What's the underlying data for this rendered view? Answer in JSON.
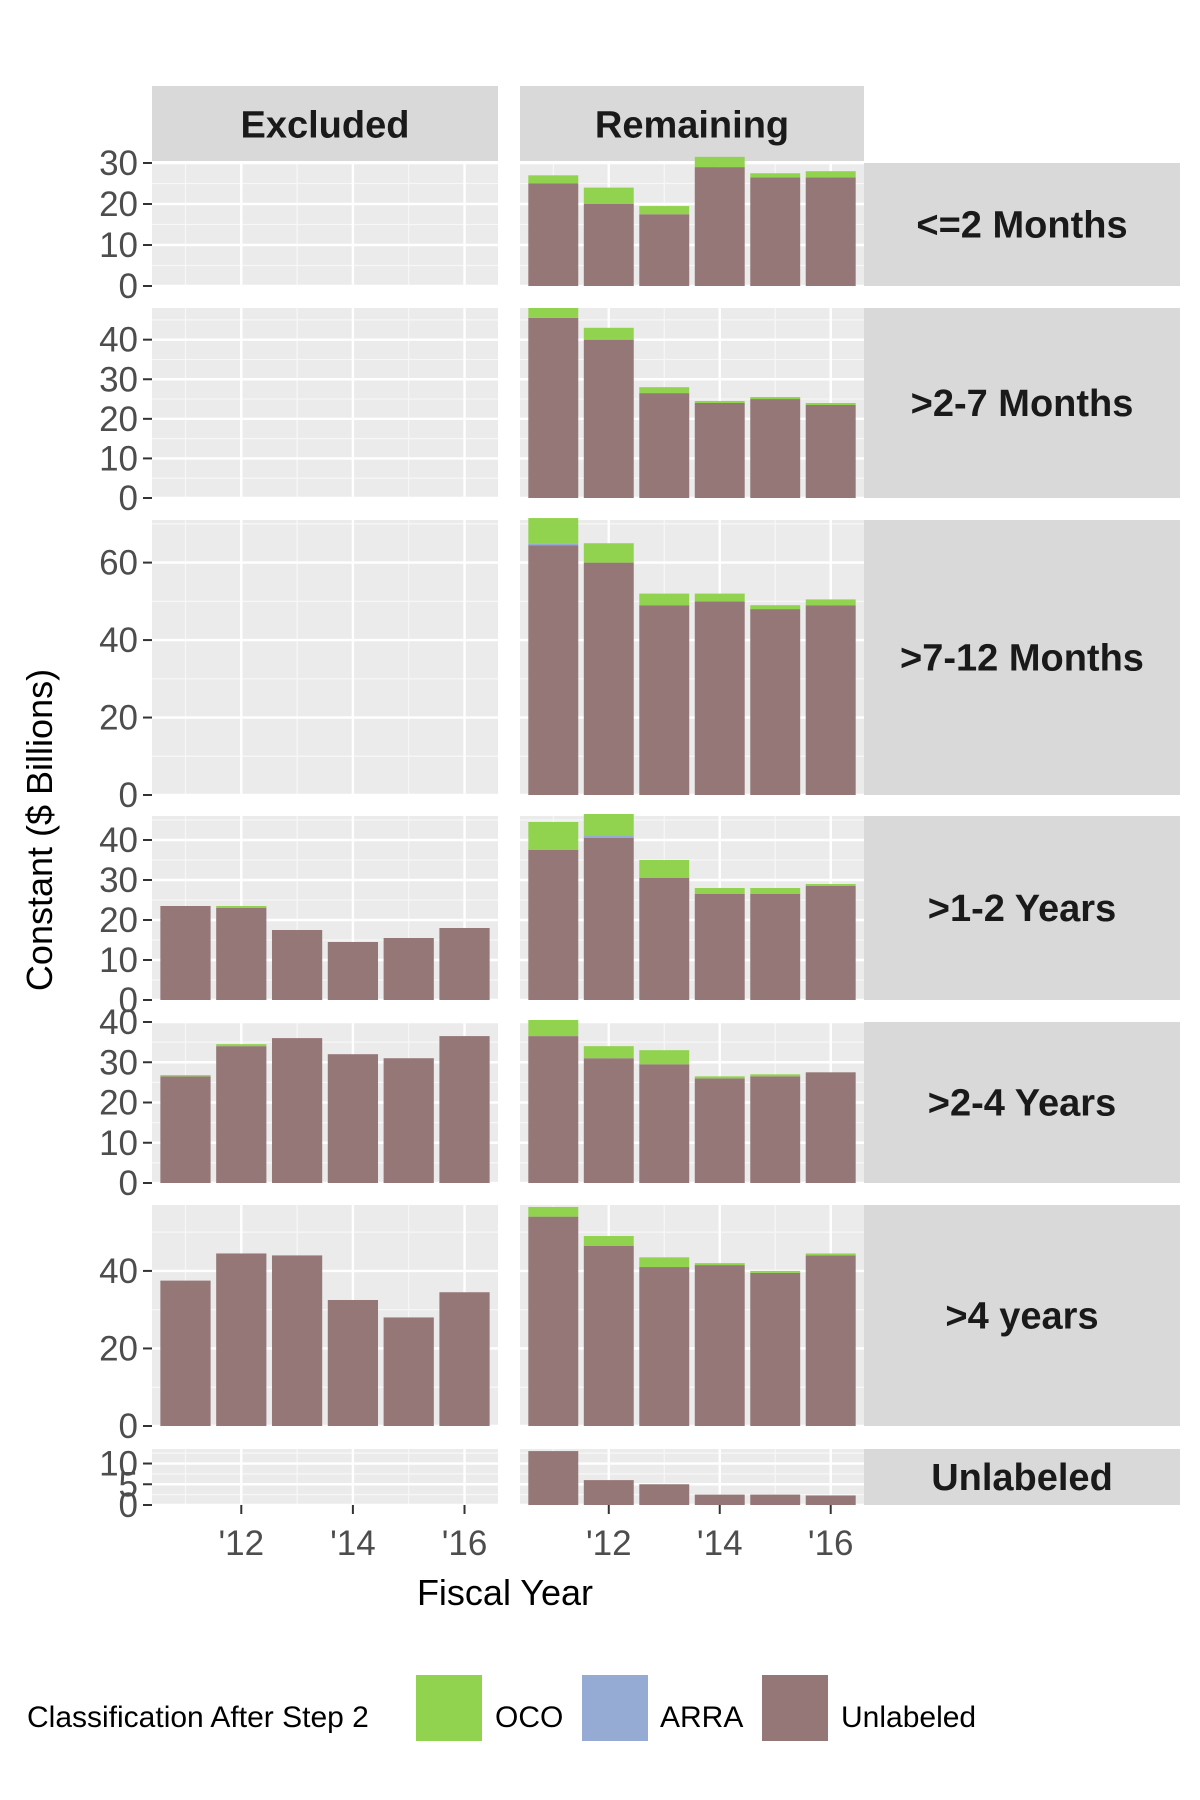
{
  "chart_data": {
    "type": "bar",
    "stacked": true,
    "x": [
      2011,
      2012,
      2013,
      2014,
      2015,
      2016
    ],
    "x_tick_labels": [
      "'12",
      "'14",
      "'16"
    ],
    "xlabel": "Fiscal Year",
    "ylabel": "Constant ($ Billions)",
    "columns": [
      "Excluded",
      "Remaining"
    ],
    "legend": {
      "title": "Classification After Step 2",
      "position": "bottom",
      "entries": [
        {
          "name": "OCO",
          "color": "#91d34e"
        },
        {
          "name": "ARRA",
          "color": "#96abd3"
        },
        {
          "name": "Unlabeled",
          "color": "#967777"
        }
      ]
    },
    "series_order": [
      "Unlabeled",
      "ARRA",
      "OCO"
    ],
    "rows": [
      {
        "label": "<=2 Months",
        "ylim": [
          0,
          30
        ],
        "ticks": [
          0,
          10,
          20,
          30
        ],
        "panels": {
          "Excluded": {
            "Unlabeled": [],
            "ARRA": [],
            "OCO": []
          },
          "Remaining": {
            "Unlabeled": [
              25,
              20,
              17.5,
              29,
              26.5,
              26.5
            ],
            "ARRA": [
              0,
              0,
              0,
              0,
              0,
              0
            ],
            "OCO": [
              2,
              4,
              2,
              2.5,
              1,
              1.5
            ]
          }
        }
      },
      {
        "label": ">2-7 Months",
        "ylim": [
          0,
          48
        ],
        "ticks": [
          0,
          10,
          20,
          30,
          40
        ],
        "panels": {
          "Excluded": {
            "Unlabeled": [],
            "ARRA": [],
            "OCO": []
          },
          "Remaining": {
            "Unlabeled": [
              45.5,
              40,
              26.5,
              24,
              25,
              23.5
            ],
            "ARRA": [
              0,
              0,
              0,
              0,
              0,
              0
            ],
            "OCO": [
              2.5,
              3,
              1.5,
              0.5,
              0.5,
              0.5
            ]
          }
        }
      },
      {
        "label": ">7-12 Months",
        "ylim": [
          0,
          71
        ],
        "ticks": [
          0,
          20,
          40,
          60
        ],
        "panels": {
          "Excluded": {
            "Unlabeled": [],
            "ARRA": [],
            "OCO": []
          },
          "Remaining": {
            "Unlabeled": [
              64.5,
              60,
              49,
              50,
              48,
              49
            ],
            "ARRA": [
              0.5,
              0,
              0,
              0,
              0,
              0
            ],
            "OCO": [
              6.5,
              5,
              3,
              2,
              1,
              1.5
            ]
          }
        }
      },
      {
        "label": ">1-2 Years",
        "ylim": [
          0,
          46
        ],
        "ticks": [
          0,
          10,
          20,
          30,
          40
        ],
        "panels": {
          "Excluded": {
            "Unlabeled": [
              23.5,
              23,
              17.5,
              14.5,
              15.5,
              18
            ],
            "ARRA": [
              0,
              0,
              0,
              0,
              0,
              0
            ],
            "OCO": [
              0,
              0.5,
              0,
              0,
              0,
              0
            ]
          },
          "Remaining": {
            "Unlabeled": [
              37.5,
              40.5,
              30.5,
              26.5,
              26.5,
              28.5
            ],
            "ARRA": [
              0,
              0.5,
              0,
              0,
              0,
              0
            ],
            "OCO": [
              7,
              5.5,
              4.5,
              1.5,
              1.5,
              0.5
            ]
          }
        }
      },
      {
        "label": ">2-4 Years",
        "ylim": [
          0,
          40
        ],
        "ticks": [
          0,
          10,
          20,
          30,
          40
        ],
        "panels": {
          "Excluded": {
            "Unlabeled": [
              26.5,
              34,
              36,
              32,
              31,
              36.5
            ],
            "ARRA": [
              0,
              0,
              0,
              0,
              0,
              0
            ],
            "OCO": [
              0.3,
              0.5,
              0,
              0,
              0,
              0
            ]
          },
          "Remaining": {
            "Unlabeled": [
              36.5,
              31,
              29.5,
              26,
              26.5,
              27.5
            ],
            "ARRA": [
              0,
              0,
              0,
              0,
              0,
              0
            ],
            "OCO": [
              4,
              3,
              3.5,
              0.5,
              0.5,
              0
            ]
          }
        }
      },
      {
        "label": ">4 years",
        "ylim": [
          0,
          57
        ],
        "ticks": [
          0,
          20,
          40
        ],
        "panels": {
          "Excluded": {
            "Unlabeled": [
              37.5,
              44.5,
              44,
              32.5,
              28,
              34.5
            ],
            "ARRA": [
              0,
              0,
              0,
              0,
              0,
              0
            ],
            "OCO": [
              0,
              0,
              0,
              0,
              0,
              0
            ]
          },
          "Remaining": {
            "Unlabeled": [
              54,
              46.5,
              41,
              41.5,
              39.5,
              44
            ],
            "ARRA": [
              0,
              0,
              0,
              0,
              0,
              0
            ],
            "OCO": [
              2.5,
              2.5,
              2.5,
              0.5,
              0.5,
              0.5
            ]
          }
        }
      },
      {
        "label": "Unlabeled",
        "ylim": [
          0,
          13.5
        ],
        "ticks": [
          0,
          5,
          10
        ],
        "panels": {
          "Excluded": {
            "Unlabeled": [],
            "ARRA": [],
            "OCO": []
          },
          "Remaining": {
            "Unlabeled": [
              13,
              6,
              5,
              2.5,
              2.5,
              2.3
            ],
            "ARRA": [
              0,
              0,
              0,
              0,
              0,
              0
            ],
            "OCO": [
              0,
              0,
              0,
              0,
              0,
              0
            ]
          }
        }
      }
    ]
  }
}
